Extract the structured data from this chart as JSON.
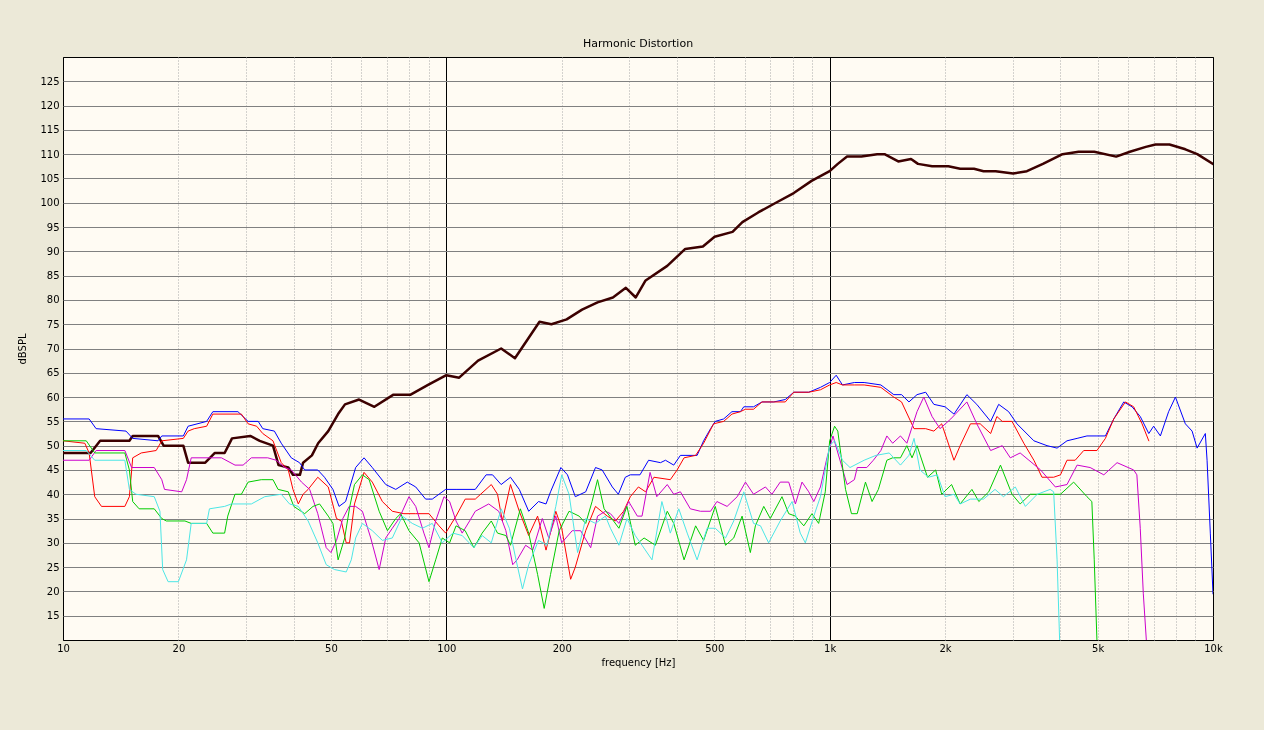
{
  "chart_data": {
    "type": "line",
    "title": "Harmonic Distortion",
    "xlabel": "frequency [Hz]",
    "ylabel": "dBSPL",
    "log": "x",
    "grid": true,
    "xlim": [
      10,
      10000
    ],
    "ylim": [
      10,
      130
    ],
    "xticks": [
      10,
      20,
      {
        "value": 30,
        "label": null
      },
      {
        "value": 40,
        "label": null
      },
      50,
      {
        "value": 60,
        "label": null
      },
      {
        "value": 70,
        "label": null
      },
      {
        "value": 80,
        "label": null
      },
      {
        "value": 90,
        "label": null
      },
      100,
      200,
      {
        "value": 300,
        "label": null
      },
      {
        "value": 400,
        "label": null
      },
      500,
      {
        "value": 600,
        "label": null
      },
      {
        "value": 700,
        "label": null
      },
      {
        "value": 800,
        "label": null
      },
      {
        "value": 900,
        "label": null
      },
      {
        "value": 1000,
        "label": "1k"
      },
      {
        "value": 2000,
        "label": "2k"
      },
      {
        "value": 3000,
        "label": null
      },
      {
        "value": 4000,
        "label": null
      },
      {
        "value": 5000,
        "label": "5k"
      },
      {
        "value": 6000,
        "label": null
      },
      {
        "value": 7000,
        "label": null
      },
      {
        "value": 8000,
        "label": null
      },
      {
        "value": 9000,
        "label": null
      },
      {
        "value": 10000,
        "label": "10k"
      }
    ],
    "yticks": [
      15,
      20,
      25,
      30,
      35,
      40,
      45,
      50,
      55,
      60,
      65,
      70,
      75,
      80,
      85,
      90,
      95,
      100,
      105,
      110,
      115,
      120,
      125
    ],
    "series": [
      {
        "color": "#3c0000",
        "x": [
          10,
          11.8,
          12.5,
          14.9,
          15.2,
          17.7,
          18.3,
          20.6,
          21.2,
          23.5,
          24.9,
          26.4,
          27.6,
          30.8,
          32.6,
          35.3,
          36.5,
          38.7,
          39.8,
          41.5,
          42.3,
          44.6,
          46.3,
          49.2,
          52.2,
          54.4,
          59.2,
          64.9,
          72.8,
          80.7,
          89.6,
          100,
          108,
          121,
          139,
          151,
          175,
          188,
          206,
          226,
          248,
          272,
          294,
          312,
          331,
          377,
          420,
          467,
          501,
          558,
          592,
          651,
          724,
          806,
          897,
          1000,
          1050,
          1110,
          1210,
          1330,
          1390,
          1510,
          1630,
          1700,
          1850,
          2040,
          2190,
          2380,
          2520,
          2710,
          3010,
          3270,
          3600,
          4050,
          4460,
          4900,
          5590,
          6070,
          6680,
          7080,
          7700,
          8470,
          9100,
          10000
        ],
        "values": [
          48.5,
          48.5,
          51,
          51,
          52,
          52,
          50,
          50,
          46.5,
          46.5,
          48.5,
          48.5,
          51.5,
          52,
          51,
          50,
          46,
          45.5,
          44,
          44,
          46.5,
          48,
          50.5,
          53,
          56.5,
          58.5,
          59.5,
          58,
          60.5,
          60.5,
          62.5,
          64.5,
          64,
          67.5,
          70,
          68,
          75.5,
          75,
          76,
          78,
          79.5,
          80.5,
          82.5,
          80.5,
          84,
          87,
          90.5,
          91,
          93,
          94,
          96,
          98,
          100,
          102,
          104.5,
          106.5,
          108,
          109.5,
          109.5,
          110,
          110,
          108.5,
          109,
          108,
          107.5,
          107.5,
          107,
          107,
          106.5,
          106.5,
          106,
          106.5,
          108,
          110,
          110.5,
          110.5,
          109.5,
          110.5,
          111.5,
          112,
          112,
          111,
          110,
          108
        ]
      },
      {
        "color": "#0000ff",
        "x": [
          10,
          11.7,
          12.2,
          14.6,
          15.2,
          17.7,
          18.1,
          20.6,
          21.2,
          23.7,
          24.6,
          28.6,
          30.4,
          32.3,
          33.2,
          35.6,
          37.1,
          39.4,
          41.4,
          42.7,
          46.2,
          48.1,
          50.6,
          52.5,
          54.6,
          58,
          61,
          64.1,
          69.5,
          73.8,
          79.1,
          83.2,
          88.3,
          91.9,
          99.6,
          106,
          119,
          127,
          132,
          139,
          147,
          155,
          164,
          174,
          182,
          187,
          199,
          207,
          217,
          231,
          245,
          255,
          271,
          281,
          293,
          302,
          320,
          337,
          362,
          373,
          392,
          408,
          451,
          469,
          489,
          503,
          529,
          556,
          585,
          597,
          633,
          666,
          715,
          766,
          806,
          882,
          946,
          1000,
          1040,
          1080,
          1160,
          1230,
          1360,
          1470,
          1540,
          1610,
          1690,
          1780,
          1870,
          2000,
          2110,
          2280,
          2420,
          2630,
          2760,
          2930,
          3080,
          3410,
          3690,
          3920,
          4160,
          4420,
          4690,
          4980,
          5240,
          5510,
          5850,
          6150,
          6460,
          6800,
          7000,
          7290,
          7660,
          7980,
          8470,
          8820,
          9090,
          9550,
          9650,
          9840,
          10000
        ],
        "values": [
          55.5,
          55.5,
          53.5,
          53,
          51.5,
          51,
          52,
          52,
          54,
          55,
          57,
          57,
          55,
          55,
          53.5,
          53,
          50.5,
          47.5,
          46.5,
          45,
          45,
          43.5,
          41,
          37.5,
          38.5,
          45.5,
          47.5,
          45.5,
          42,
          41,
          42.5,
          41.5,
          39,
          39,
          41,
          41,
          41,
          44,
          44,
          42,
          43.5,
          41,
          36.5,
          38.5,
          38,
          40.5,
          45.5,
          44,
          39.5,
          40.5,
          45.5,
          45,
          41.5,
          40,
          43.5,
          44,
          44,
          47,
          46.5,
          47,
          46,
          48,
          48,
          51,
          53.5,
          55,
          55.5,
          57,
          57,
          58,
          58,
          59,
          59,
          59.5,
          61,
          61,
          62,
          63,
          64.5,
          62.5,
          63,
          63,
          62.5,
          60.5,
          60.5,
          59,
          60.5,
          61,
          58.5,
          58,
          56.5,
          60.5,
          58.5,
          55,
          58.5,
          57,
          54.5,
          51,
          50,
          49.5,
          51,
          51.5,
          52,
          52,
          52,
          55.5,
          59,
          58,
          56,
          52.5,
          54,
          52,
          57,
          60,
          54.5,
          53,
          49.5,
          52.5,
          47,
          32,
          19.5
        ]
      },
      {
        "color": "#ff0000",
        "x": [
          10,
          11.4,
          11.7,
          12.1,
          12.6,
          14.5,
          14.9,
          15.2,
          16,
          17.5,
          18.1,
          20.6,
          21.2,
          22,
          23.7,
          24.6,
          29.2,
          30.4,
          32,
          33.2,
          35.3,
          37.1,
          38.7,
          39.8,
          41.1,
          42.3,
          43.6,
          46.2,
          49.2,
          51.7,
          53.2,
          54.8,
          55.9,
          57.6,
          61,
          64.1,
          68.1,
          72.3,
          77.5,
          83.2,
          90.1,
          95.7,
          99.6,
          106,
          112,
          119,
          131,
          136,
          140,
          147,
          155,
          164,
          173,
          182,
          193,
          200,
          211,
          217,
          231,
          245,
          263,
          276,
          290,
          302,
          317,
          331,
          348,
          384,
          400,
          417,
          447,
          469,
          498,
          529,
          556,
          585,
          603,
          633,
          666,
          715,
          766,
          806,
          882,
          946,
          1000,
          1040,
          1080,
          1160,
          1230,
          1360,
          1470,
          1540,
          1660,
          1780,
          1870,
          1960,
          2110,
          2190,
          2330,
          2470,
          2630,
          2730,
          2820,
          2990,
          3210,
          3410,
          3580,
          3840,
          4000,
          4160,
          4370,
          4600,
          4980,
          5240,
          5510,
          5910,
          6210,
          6530,
          6800
        ],
        "values": [
          51,
          50.5,
          48.5,
          39.5,
          37.5,
          37.5,
          39.5,
          47.5,
          48.5,
          49,
          51,
          51.5,
          53,
          53.5,
          54,
          56.5,
          56.5,
          54.5,
          54,
          52.5,
          51,
          46.5,
          45,
          41,
          38,
          40,
          41,
          43.5,
          41.5,
          35,
          34.5,
          30,
          30,
          38,
          44.5,
          42.5,
          38.5,
          36.5,
          36,
          36,
          36,
          33.5,
          32,
          35.5,
          39,
          39,
          42,
          40,
          34.5,
          42,
          36.5,
          31.5,
          35.5,
          28.5,
          36.5,
          33,
          22.5,
          25,
          32.5,
          37.5,
          35.5,
          34.5,
          36.5,
          39.5,
          41.5,
          40.5,
          43.5,
          43,
          45,
          47.5,
          48,
          50.5,
          54.5,
          55,
          56.5,
          57,
          57.5,
          57.5,
          59,
          59,
          59,
          61,
          61,
          61.5,
          62.5,
          63,
          62.5,
          62.5,
          62.5,
          62,
          60,
          59,
          53.5,
          53.5,
          53,
          54.5,
          47,
          50,
          54.5,
          54.5,
          52.5,
          56,
          55,
          55,
          50.5,
          47,
          43.5,
          43.5,
          44,
          47,
          47,
          49,
          49,
          51.5,
          55.5,
          59,
          58,
          54.5,
          51
        ]
      },
      {
        "color": "#cc00cc",
        "x": [
          10,
          11.7,
          12.2,
          14.5,
          15.1,
          17.3,
          18.1,
          18.4,
          20.4,
          21,
          21.6,
          25.9,
          28.1,
          29.5,
          31,
          34.2,
          36,
          37.9,
          39.4,
          41.9,
          44,
          46.2,
          48.6,
          50,
          51.7,
          53.7,
          55.8,
          58,
          60.4,
          63.5,
          66.8,
          69.5,
          72.3,
          75.3,
          79.9,
          83.2,
          87.4,
          90.1,
          93.8,
          98.6,
          102,
          106,
          110,
          115,
          119,
          129,
          137,
          143,
          149,
          153,
          161,
          168,
          178,
          185,
          193,
          200,
          213,
          224,
          238,
          248,
          260,
          268,
          282,
          299,
          315,
          324,
          340,
          354,
          377,
          392,
          408,
          433,
          460,
          489,
          508,
          540,
          574,
          603,
          633,
          680,
          707,
          743,
          782,
          814,
          847,
          882,
          909,
          946,
          984,
          1020,
          1110,
          1160,
          1180,
          1250,
          1300,
          1360,
          1410,
          1460,
          1530,
          1590,
          1690,
          1760,
          1850,
          1940,
          2070,
          2280,
          2420,
          2630,
          2820,
          2960,
          3140,
          3310,
          3550,
          3880,
          4160,
          4420,
          4780,
          5190,
          5620,
          6210,
          6330,
          6460,
          6580,
          6700
        ],
        "values": [
          47,
          47,
          49,
          49,
          45.5,
          45.5,
          43,
          41,
          40.5,
          43,
          47.5,
          47.5,
          46,
          46,
          47.5,
          47.5,
          47,
          45.5,
          45,
          42.5,
          41,
          36,
          29,
          28,
          30.5,
          35,
          37.5,
          37.5,
          36.5,
          31,
          24.5,
          31,
          33,
          35,
          39.5,
          37.5,
          32,
          29,
          34.5,
          39.5,
          38.5,
          34.5,
          32,
          34.5,
          36.5,
          38,
          36.5,
          32.5,
          25.5,
          26.5,
          29.5,
          28.5,
          35,
          31,
          35.5,
          30,
          32.5,
          32.5,
          29,
          35.5,
          36.5,
          36,
          34,
          38.5,
          35.5,
          35.5,
          44.5,
          39.5,
          42,
          40,
          40.5,
          37,
          36.5,
          36.5,
          38.5,
          37.5,
          39.5,
          42.5,
          40,
          41.5,
          40,
          42.5,
          42.5,
          38,
          42.5,
          40.5,
          38.5,
          41.5,
          47.5,
          52,
          42,
          43,
          45.5,
          45.5,
          47,
          49,
          52,
          50.5,
          52,
          50.5,
          57,
          60,
          56,
          53.5,
          55.5,
          59,
          54.5,
          49,
          50,
          47.5,
          48.5,
          47,
          45,
          41.5,
          42,
          46,
          45.5,
          44,
          46.5,
          45,
          44,
          33,
          19.5,
          10
        ]
      },
      {
        "color": "#00cc00",
        "x": [
          10,
          11.5,
          12.1,
          14.5,
          14.9,
          15.2,
          15.8,
          17.3,
          18.1,
          18.6,
          20.8,
          21.6,
          23.7,
          24.6,
          26.4,
          26.9,
          28.1,
          29.2,
          30.4,
          32.9,
          35.3,
          36.4,
          38.7,
          40,
          42.7,
          44.9,
          46.7,
          49.2,
          50.6,
          52.2,
          54.3,
          56,
          57.6,
          60.4,
          62.9,
          66.8,
          70.2,
          73.8,
          76,
          79.9,
          84.9,
          90.1,
          93.8,
          97.6,
          102,
          106,
          112,
          118,
          124,
          131,
          136,
          143,
          147,
          156,
          164,
          173,
          180,
          187,
          197,
          209,
          222,
          231,
          240,
          248,
          258,
          273,
          282,
          296,
          311,
          328,
          351,
          377,
          392,
          417,
          447,
          469,
          503,
          535,
          562,
          591,
          621,
          640,
          673,
          700,
          751,
          782,
          814,
          856,
          899,
          936,
          974,
          1000,
          1030,
          1050,
          1100,
          1140,
          1180,
          1240,
          1290,
          1340,
          1410,
          1460,
          1530,
          1590,
          1640,
          1690,
          1800,
          1890,
          1960,
          2080,
          2190,
          2350,
          2450,
          2600,
          2790,
          2990,
          3140,
          3340,
          3760,
          4000,
          4330,
          4690,
          4830,
          4900,
          4980
        ],
        "values": [
          51,
          51,
          48.5,
          48.5,
          45,
          38.5,
          37,
          37,
          35,
          34.5,
          34.5,
          34,
          34,
          32,
          32,
          35.5,
          40,
          40,
          42.5,
          43,
          43,
          41,
          40.5,
          37.5,
          36,
          37.5,
          38,
          35.5,
          34,
          26.5,
          31,
          37.5,
          42,
          44,
          43,
          36.5,
          32.5,
          35,
          36,
          32.5,
          30,
          22,
          26.5,
          31,
          30,
          33.5,
          32.5,
          29,
          32,
          34.5,
          32,
          31.5,
          29.5,
          37,
          32,
          23.5,
          16.5,
          23.5,
          32.5,
          36.5,
          35.5,
          34,
          38.5,
          43,
          37,
          34.5,
          33,
          37.5,
          29.5,
          31,
          29.5,
          36.5,
          34,
          26.5,
          33.5,
          30.5,
          37.5,
          29.5,
          31,
          35.5,
          28,
          33.5,
          37.5,
          35,
          39.5,
          36,
          35.5,
          33.5,
          36,
          34,
          40.5,
          51,
          54,
          53,
          41,
          36,
          36,
          42.5,
          38.5,
          41,
          47,
          47.5,
          47.5,
          50,
          47.5,
          50,
          43.5,
          45,
          40,
          42,
          38,
          41,
          38.5,
          40.5,
          46,
          40,
          38,
          40,
          40,
          40,
          42.5,
          39.5,
          38.5,
          26.5,
          10
        ]
      },
      {
        "color": "#4ce6e6",
        "x": [
          10,
          11.5,
          12.1,
          14.5,
          14.9,
          15.5,
          17.3,
          17.9,
          18.2,
          18.8,
          20,
          21,
          21.6,
          23.7,
          24.1,
          26.4,
          27.5,
          31,
          33.6,
          37.1,
          39,
          41.1,
          43.6,
          46.2,
          48.6,
          51.1,
          54.8,
          56.5,
          58,
          60.4,
          64.1,
          68.1,
          72.3,
          76.8,
          81.5,
          86.6,
          91.9,
          97.6,
          104,
          110,
          118,
          124,
          131,
          139,
          146,
          152,
          158,
          164,
          174,
          183,
          193,
          200,
          209,
          220,
          231,
          245,
          260,
          268,
          282,
          296,
          311,
          324,
          344,
          365,
          384,
          404,
          425,
          451,
          479,
          503,
          535,
          562,
          597,
          633,
          660,
          693,
          743,
          798,
          838,
          864,
          909,
          946,
          1000,
          1030,
          1080,
          1130,
          1230,
          1320,
          1430,
          1530,
          1610,
          1660,
          1720,
          1810,
          1910,
          2000,
          2110,
          2190,
          2330,
          2520,
          2700,
          2840,
          3050,
          3240,
          3480,
          3760,
          3840,
          3920,
          3980
        ],
        "values": [
          49,
          49,
          47,
          47,
          41,
          40,
          39.5,
          36.5,
          24.5,
          22,
          22,
          26.5,
          34,
          34,
          37,
          37.5,
          38,
          38,
          39.5,
          40,
          38,
          37.5,
          34.5,
          30,
          25.5,
          24.5,
          24,
          26.5,
          31,
          34,
          32.5,
          30.5,
          31,
          35.5,
          34,
          33,
          34,
          30,
          32,
          31.5,
          29,
          31.5,
          30,
          37,
          33,
          26.5,
          20.5,
          25.5,
          30.5,
          29.5,
          37.5,
          44,
          40,
          28,
          35,
          34,
          35.5,
          33,
          29.5,
          35,
          31.5,
          29.5,
          26.5,
          38.5,
          32,
          37,
          32,
          26.5,
          33,
          33,
          31,
          34.5,
          40.5,
          34,
          33.5,
          30,
          34.5,
          38.5,
          32,
          30,
          35.5,
          39.5,
          50,
          51,
          47,
          45.5,
          47,
          48,
          48.5,
          46,
          48,
          51.5,
          45,
          43.5,
          44,
          39.5,
          40,
          38,
          39,
          39,
          41,
          39.5,
          41.5,
          37.5,
          40,
          41,
          40.5,
          26.5,
          10
        ]
      }
    ]
  }
}
